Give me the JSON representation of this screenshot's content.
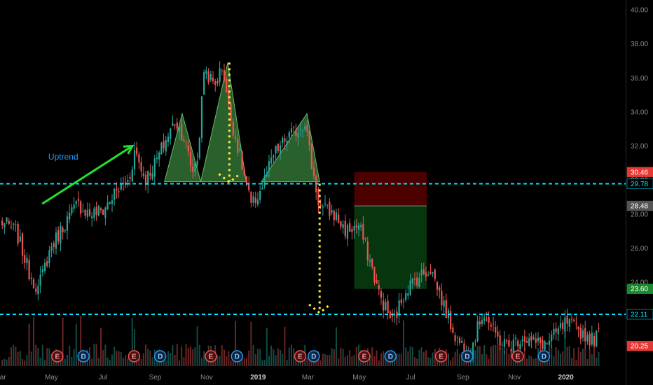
{
  "chart_data": {
    "type": "candlestick",
    "y_axis_ticks": [
      24,
      26,
      28,
      30,
      32,
      34,
      36,
      38,
      40
    ],
    "y_axis_labels": [
      "24.00",
      "26.00",
      "28.00",
      "30.00",
      "32.00",
      "34.00",
      "36.00",
      "38.00",
      "40.00"
    ],
    "ylim": [
      20,
      40.3
    ],
    "x_axis_labels": [
      "Mar",
      "May",
      "Jul",
      "Sep",
      "Nov",
      "2019",
      "Mar",
      "May",
      "Jul",
      "Sep",
      "Nov",
      "2020"
    ],
    "x_axis_bold": [
      false,
      false,
      false,
      false,
      false,
      true,
      false,
      false,
      false,
      false,
      false,
      true
    ],
    "x_start": "2018-03",
    "x_end": "2020-02",
    "up_color": "#26a69a",
    "down_color": "#ef5350",
    "close_path": [
      [
        "2018-03-01",
        27.6
      ],
      [
        "2018-03-20",
        27.0
      ],
      [
        "2018-04-05",
        24.5
      ],
      [
        "2018-04-15",
        23.6
      ],
      [
        "2018-04-30",
        26.0
      ],
      [
        "2018-05-15",
        27.3
      ],
      [
        "2018-06-01",
        28.6
      ],
      [
        "2018-06-15",
        28.0
      ],
      [
        "2018-07-01",
        28.2
      ],
      [
        "2018-07-15",
        29.2
      ],
      [
        "2018-08-01",
        30.0
      ],
      [
        "2018-08-08",
        31.8
      ],
      [
        "2018-08-20",
        30.0
      ],
      [
        "2018-09-01",
        31.0
      ],
      [
        "2018-09-15",
        32.5
      ],
      [
        "2018-09-25",
        33.5
      ],
      [
        "2018-10-05",
        32.5
      ],
      [
        "2018-10-15",
        30.5
      ],
      [
        "2018-10-22",
        31.5
      ],
      [
        "2018-10-29",
        36.6
      ],
      [
        "2018-11-10",
        35.5
      ],
      [
        "2018-11-20",
        36.7
      ],
      [
        "2018-11-28",
        34.0
      ],
      [
        "2018-12-10",
        31.5
      ],
      [
        "2018-12-24",
        28.4
      ],
      [
        "2019-01-05",
        29.5
      ],
      [
        "2019-01-20",
        31.5
      ],
      [
        "2019-02-05",
        32.5
      ],
      [
        "2019-02-18",
        33.0
      ],
      [
        "2019-02-26",
        33.5
      ],
      [
        "2019-03-05",
        31.0
      ],
      [
        "2019-03-15",
        28.4
      ],
      [
        "2019-04-01",
        28.0
      ],
      [
        "2019-04-15",
        27.0
      ],
      [
        "2019-05-01",
        27.3
      ],
      [
        "2019-05-15",
        25.0
      ],
      [
        "2019-05-25",
        23.2
      ],
      [
        "2019-06-10",
        21.6
      ],
      [
        "2019-06-25",
        23.6
      ],
      [
        "2019-07-10",
        24.3
      ],
      [
        "2019-07-25",
        24.8
      ],
      [
        "2019-08-10",
        22.5
      ],
      [
        "2019-08-25",
        20.6
      ],
      [
        "2019-09-10",
        20.0
      ],
      [
        "2019-09-25",
        22.3
      ],
      [
        "2019-10-10",
        20.8
      ],
      [
        "2019-10-25",
        20.2
      ],
      [
        "2019-11-10",
        20.8
      ],
      [
        "2019-11-25",
        20.4
      ],
      [
        "2019-12-10",
        20.4
      ],
      [
        "2020-01-01",
        21.6
      ],
      [
        "2020-01-15",
        21.2
      ],
      [
        "2020-02-01",
        20.6
      ],
      [
        "2020-02-10",
        21.0
      ]
    ],
    "horizontal_levels": [
      29.78,
      22.11
    ],
    "price_tags": [
      {
        "label": "30.46",
        "value": 30.46,
        "bg": "#e53935",
        "fg": "#ffffff"
      },
      {
        "label": "29.78",
        "value": 29.78,
        "bg": "#000000",
        "fg": "#00e5ff"
      },
      {
        "label": "28.48",
        "value": 28.48,
        "bg": "#555555",
        "fg": "#ffffff"
      },
      {
        "label": "23.60",
        "value": 23.6,
        "bg": "#1b8a2e",
        "fg": "#ffffff"
      },
      {
        "label": "22.11",
        "value": 22.11,
        "bg": "#000000",
        "fg": "#00e5ff"
      },
      {
        "label": "20.25",
        "value": 20.25,
        "bg": "#e53935",
        "fg": "#ffffff"
      }
    ],
    "position_box": {
      "x_start": "2019-04-25",
      "x_end": "2019-07-20",
      "stop": 30.46,
      "entry": 28.48,
      "target": 23.6
    },
    "shoulders": [
      {
        "part": "left",
        "points": [
          [
            "2018-09-12",
            29.9
          ],
          [
            "2018-10-03",
            33.9
          ],
          [
            "2018-10-25",
            29.9
          ]
        ]
      },
      {
        "part": "head",
        "points": [
          [
            "2018-10-25",
            29.9
          ],
          [
            "2018-11-26",
            36.9
          ],
          [
            "2018-12-18",
            29.9
          ]
        ]
      },
      {
        "part": "right",
        "points": [
          [
            "2019-01-05",
            29.9
          ],
          [
            "2019-02-28",
            33.9
          ],
          [
            "2019-03-15",
            29.9
          ]
        ]
      }
    ],
    "arrow_up": {
      "from": [
        "2018-04-20",
        28.6
      ],
      "to": [
        "2018-08-05",
        32.0
      ]
    },
    "measure_down_1": {
      "x": "2018-11-28",
      "from": 36.9,
      "to": 29.78
    },
    "measure_down_2": {
      "x": "2019-03-15",
      "from": 29.78,
      "to": 22.11
    },
    "annotations": [
      {
        "text": "Uptrend",
        "x": "2018-05-15",
        "y": 31.2
      }
    ],
    "events": [
      {
        "label": "E",
        "kind": "earnings",
        "date": "2018-05-08"
      },
      {
        "label": "D",
        "kind": "dividend",
        "date": "2018-06-08"
      },
      {
        "label": "E",
        "kind": "earnings",
        "date": "2018-08-07"
      },
      {
        "label": "D",
        "kind": "dividend",
        "date": "2018-09-07"
      },
      {
        "label": "E",
        "kind": "earnings",
        "date": "2018-11-06"
      },
      {
        "label": "D",
        "kind": "dividend",
        "date": "2018-12-07"
      },
      {
        "label": "E",
        "kind": "earnings",
        "date": "2019-02-20"
      },
      {
        "label": "D",
        "kind": "dividend",
        "date": "2019-03-08"
      },
      {
        "label": "E",
        "kind": "earnings",
        "date": "2019-05-07"
      },
      {
        "label": "D",
        "kind": "dividend",
        "date": "2019-06-07"
      },
      {
        "label": "E",
        "kind": "earnings",
        "date": "2019-08-06"
      },
      {
        "label": "D",
        "kind": "dividend",
        "date": "2019-09-06"
      },
      {
        "label": "E",
        "kind": "earnings",
        "date": "2019-11-05"
      },
      {
        "label": "D",
        "kind": "dividend",
        "date": "2019-12-06"
      }
    ]
  }
}
